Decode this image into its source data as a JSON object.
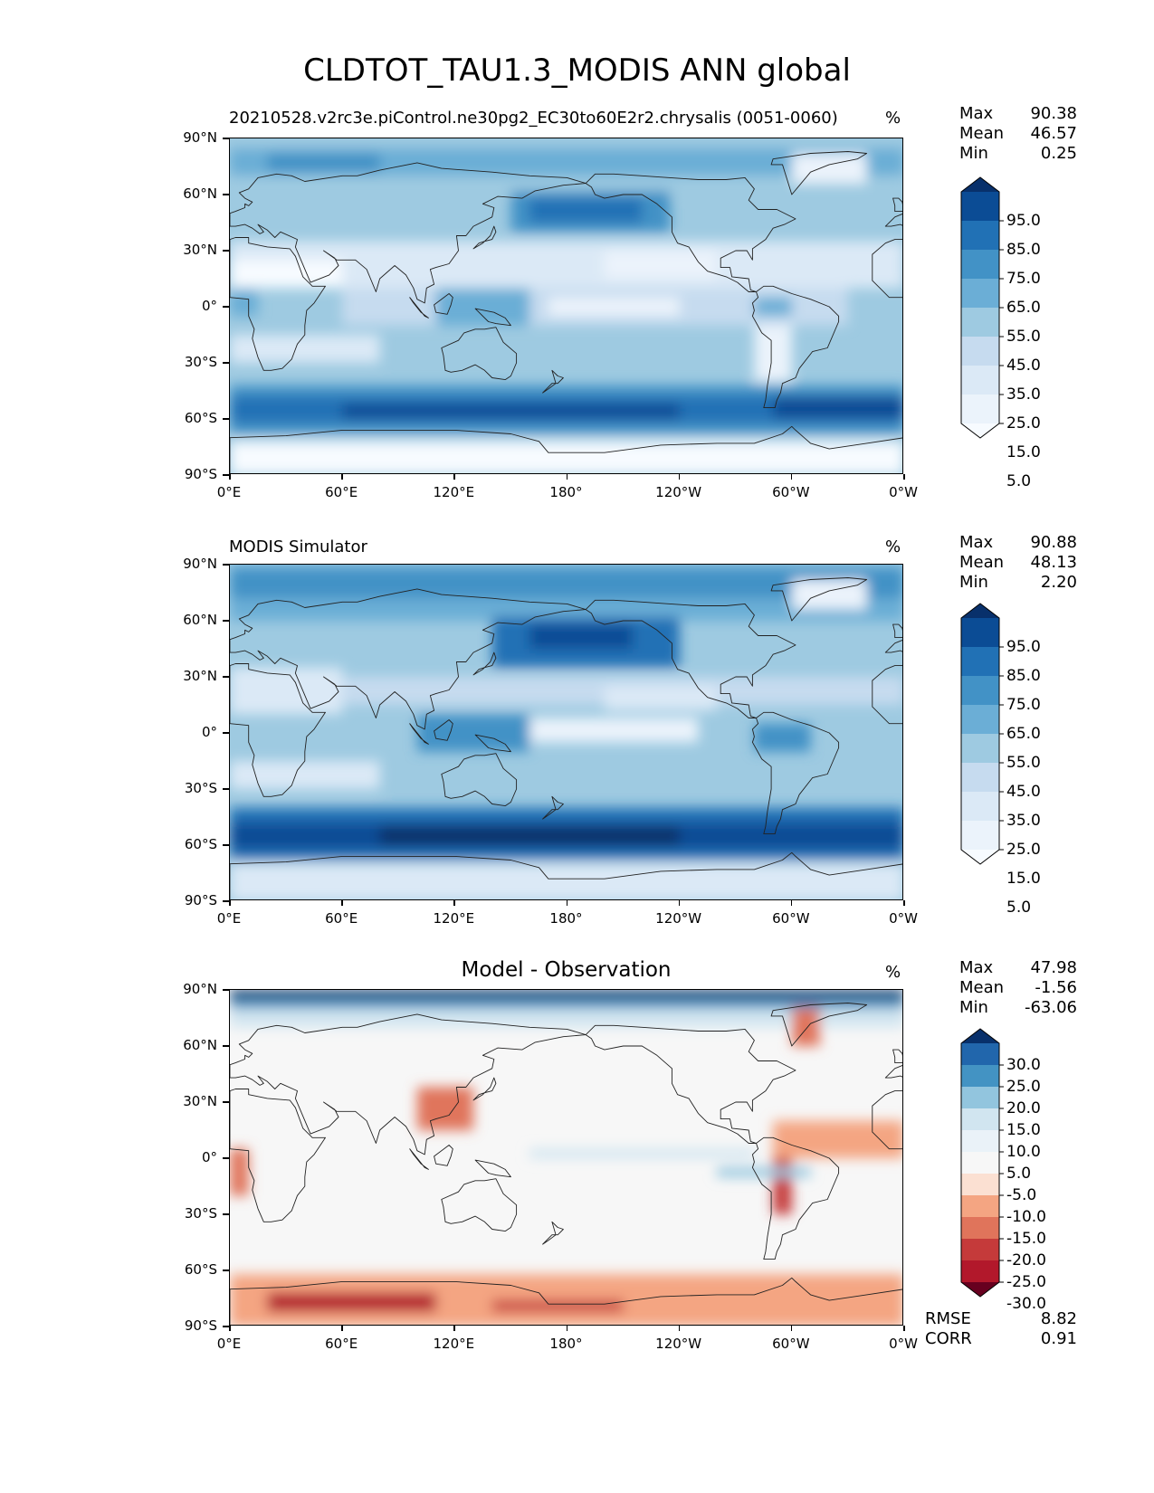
{
  "page_title": "CLDTOT_TAU1.3_MODIS ANN global",
  "chart_data": [
    {
      "type": "heatmap",
      "title": "20210528.v2rc3e.piControl.ne30pg2_EC30to60E2r2.chrysalis (0051-0060)",
      "units": "%",
      "xticks": [
        "0°E",
        "60°E",
        "120°E",
        "180°",
        "120°W",
        "60°W",
        "0°W"
      ],
      "yticks": [
        "90°N",
        "60°N",
        "30°N",
        "0°",
        "30°S",
        "60°S",
        "90°S"
      ],
      "stats": {
        "max": "90.38",
        "mean": "46.57",
        "min": "0.25"
      },
      "colorbar": {
        "levels": [
          "95.0",
          "85.0",
          "75.0",
          "65.0",
          "55.0",
          "45.0",
          "35.0",
          "25.0",
          "15.0",
          "5.0"
        ],
        "colors": [
          "#08306b",
          "#0b4c95",
          "#2171b5",
          "#4292c6",
          "#6baed6",
          "#9ecae1",
          "#c6dbef",
          "#dbe9f6",
          "#ebf3fb",
          "#f7fbff"
        ],
        "extend": "both"
      }
    },
    {
      "type": "heatmap",
      "title": "MODIS Simulator",
      "units": "%",
      "xticks": [
        "0°E",
        "60°E",
        "120°E",
        "180°",
        "120°W",
        "60°W",
        "0°W"
      ],
      "yticks": [
        "90°N",
        "60°N",
        "30°N",
        "0°",
        "30°S",
        "60°S",
        "90°S"
      ],
      "stats": {
        "max": "90.88",
        "mean": "48.13",
        "min": "2.20"
      },
      "colorbar": {
        "levels": [
          "95.0",
          "85.0",
          "75.0",
          "65.0",
          "55.0",
          "45.0",
          "35.0",
          "25.0",
          "15.0",
          "5.0"
        ],
        "colors": [
          "#08306b",
          "#0b4c95",
          "#2171b5",
          "#4292c6",
          "#6baed6",
          "#9ecae1",
          "#c6dbef",
          "#dbe9f6",
          "#ebf3fb",
          "#f7fbff"
        ],
        "extend": "both"
      }
    },
    {
      "type": "heatmap",
      "title": "Model - Observation",
      "units": "%",
      "xticks": [
        "0°E",
        "60°E",
        "120°E",
        "180°",
        "120°W",
        "60°W",
        "0°W"
      ],
      "yticks": [
        "90°N",
        "60°N",
        "30°N",
        "0°",
        "30°S",
        "60°S",
        "90°S"
      ],
      "stats": {
        "max": "47.98",
        "mean": "-1.56",
        "min": "-63.06",
        "rmse": "8.82",
        "corr": "0.91"
      },
      "colorbar": {
        "levels": [
          "30.0",
          "25.0",
          "20.0",
          "15.0",
          "10.0",
          "5.0",
          "-5.0",
          "-10.0",
          "-15.0",
          "-20.0",
          "-25.0",
          "-30.0"
        ],
        "colors": [
          "#08306b",
          "#2166ac",
          "#4393c3",
          "#92c5de",
          "#d1e5f0",
          "#eaf2f8",
          "#f7f7f7",
          "#fbe0d2",
          "#f4a582",
          "#e0745b",
          "#c53a3a",
          "#b2182b",
          "#67001f"
        ],
        "extend": "both"
      }
    }
  ],
  "labels": {
    "max": "Max",
    "mean": "Mean",
    "min": "Min",
    "rmse": "RMSE",
    "corr": "CORR"
  }
}
